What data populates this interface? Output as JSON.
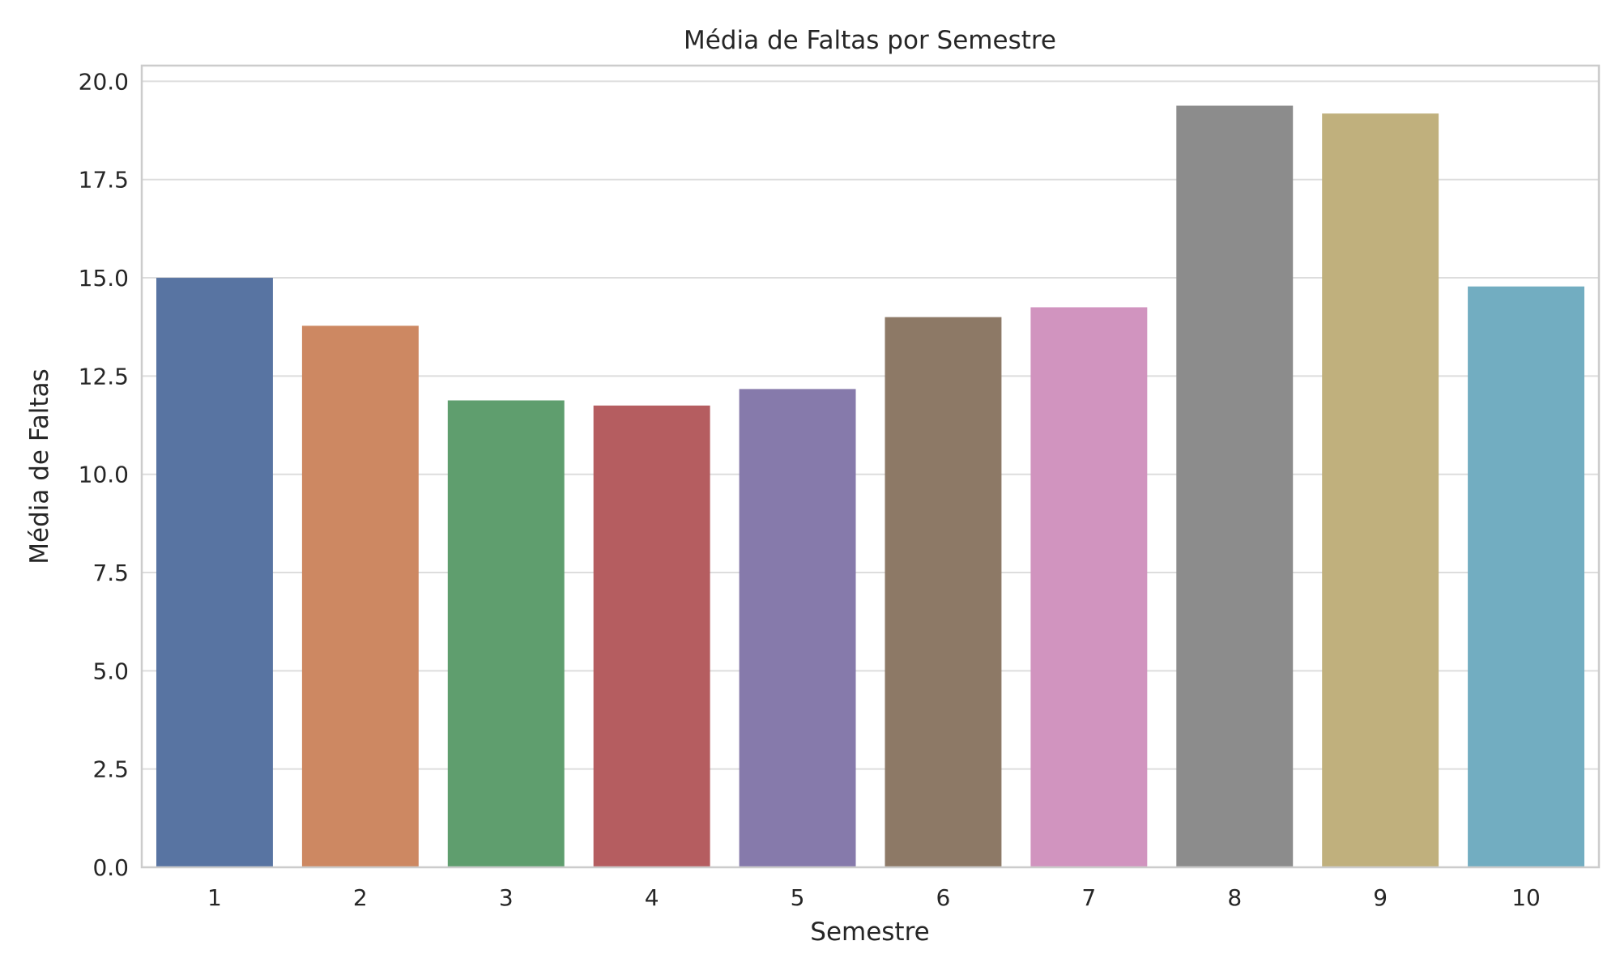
{
  "chart_data": {
    "type": "bar",
    "title": "Média de Faltas por Semestre",
    "xlabel": "Semestre",
    "ylabel": "Média de Faltas",
    "categories": [
      "1",
      "2",
      "3",
      "4",
      "5",
      "6",
      "7",
      "8",
      "9",
      "10"
    ],
    "values": [
      15.0,
      13.78,
      11.88,
      11.75,
      12.17,
      14.0,
      14.25,
      19.38,
      19.18,
      14.78
    ],
    "ylim": [
      0,
      20.4
    ],
    "yticks": [
      0.0,
      2.5,
      5.0,
      7.5,
      10.0,
      12.5,
      15.0,
      17.5,
      20.0
    ],
    "ytick_labels": [
      "0.0",
      "2.5",
      "5.0",
      "7.5",
      "10.0",
      "12.5",
      "15.0",
      "17.5",
      "20.0"
    ],
    "grid": "horizontal",
    "colors": [
      "#5874a2",
      "#cd8862",
      "#5f9e6e",
      "#b55d60",
      "#867aab",
      "#8d7966",
      "#d194bf",
      "#8c8c8c",
      "#c0b07d",
      "#72adc1"
    ],
    "background": "#ffffff",
    "grid_color": "#dddddd",
    "spine_color": "#cccccc"
  }
}
